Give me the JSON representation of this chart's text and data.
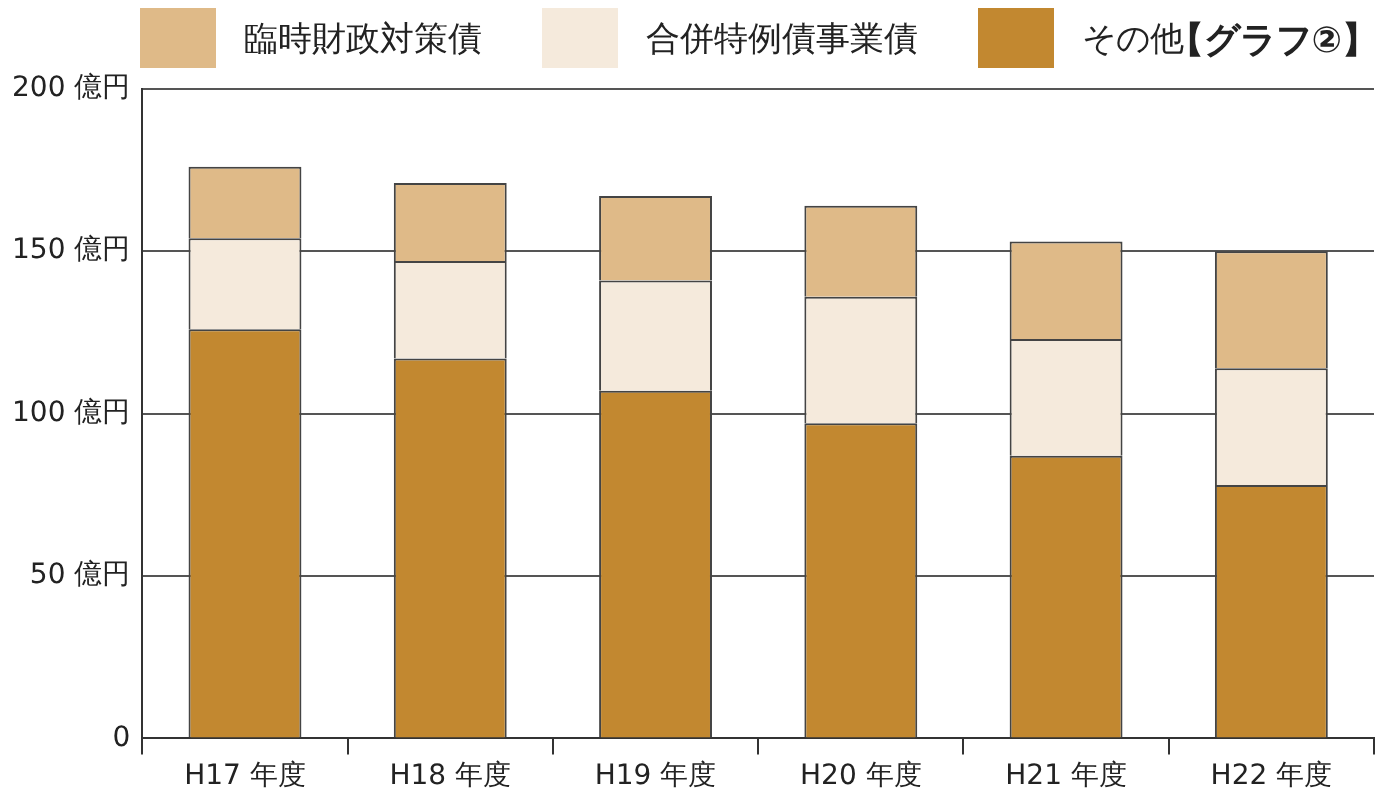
{
  "chart_data": {
    "type": "bar",
    "stacked": true,
    "categories": [
      "H17 年度",
      "H18 年度",
      "H19 年度",
      "H20 年度",
      "H21 年度",
      "H22 年度"
    ],
    "series": [
      {
        "name": "その他",
        "color": "#c28830",
        "values": [
          126,
          117,
          107,
          97,
          87,
          78
        ]
      },
      {
        "name": "合併特例債事業債",
        "color": "#f5eadc",
        "values": [
          28,
          30,
          34,
          39,
          36,
          36
        ]
      },
      {
        "name": "臨時財政対策債",
        "color": "#dfba88",
        "values": [
          22,
          24,
          26,
          28,
          30,
          36
        ]
      }
    ],
    "ylim": [
      0,
      200
    ],
    "yticks": [
      0,
      {
        "value": 50,
        "label": "50 億円"
      },
      {
        "value": 100,
        "label": "100 億円"
      },
      {
        "value": 150,
        "label": "150 億円"
      },
      {
        "value": 200,
        "label": "200 億円"
      }
    ],
    "grid": "y",
    "legend": "top",
    "annotations": [
      "【グラフ②】"
    ]
  }
}
